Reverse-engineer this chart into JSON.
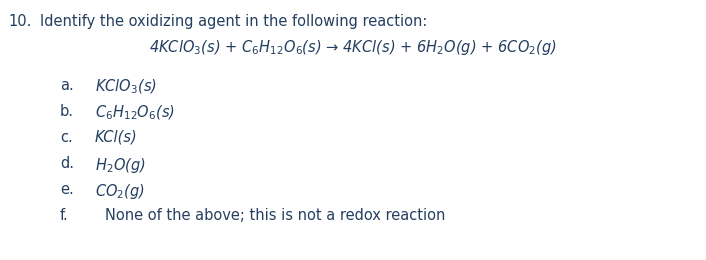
{
  "background_color": "#ffffff",
  "question_number": "10.",
  "question_text": "Identify the oxidizing agent in the following reaction:",
  "reaction": "4KClO$_3$(s) + C$_6$H$_{12}$O$_6$(s) → 4KCl(s) + 6H$_2$O(g) + 6CO$_2$(g)",
  "options": [
    {
      "label": "a.",
      "text": "KClO$_3$(s)"
    },
    {
      "label": "b.",
      "text": "C$_6$H$_{12}$O$_6$(s)"
    },
    {
      "label": "c.",
      "text": "KCl(s)"
    },
    {
      "label": "d.",
      "text": "H$_2$O(g)"
    },
    {
      "label": "e.",
      "text": "CO$_2$(g)"
    },
    {
      "label": "f.",
      "text": "None of the above; this is not a redox reaction"
    }
  ],
  "text_color": "#243f60",
  "font_size": 10.5,
  "fig_width": 7.06,
  "fig_height": 2.6,
  "dpi": 100
}
